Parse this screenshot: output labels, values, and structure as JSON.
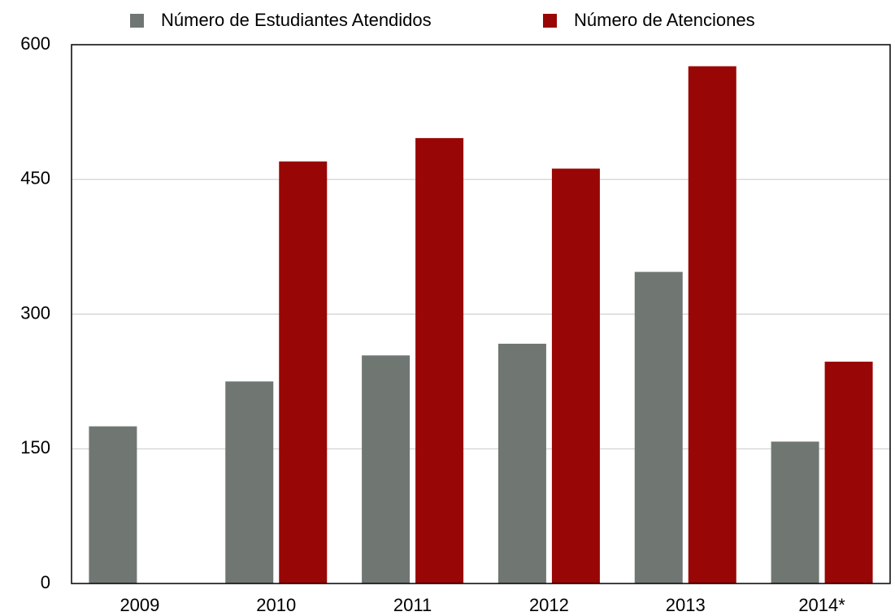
{
  "chart_data": {
    "type": "bar",
    "categories": [
      "2009",
      "2010",
      "2011",
      "2012",
      "2013",
      "2014*"
    ],
    "series": [
      {
        "name": "Número de Estudiantes Atendidos",
        "color": "#707773",
        "values": [
          175,
          225,
          254,
          267,
          347,
          158
        ]
      },
      {
        "name": "Número de Atenciones",
        "color": "#990606",
        "values": [
          null,
          470,
          496,
          462,
          576,
          247
        ]
      }
    ],
    "ylim": [
      0,
      600
    ],
    "yticks": [
      0,
      150,
      300,
      450,
      600
    ],
    "grid": true,
    "legend": "top"
  }
}
